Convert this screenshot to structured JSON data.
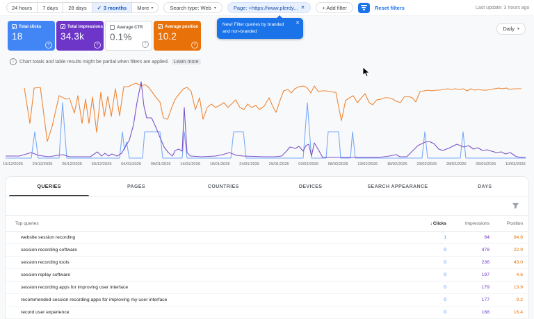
{
  "toolbar": {
    "date_ranges": [
      {
        "label": "24 hours"
      },
      {
        "label": "7 days"
      },
      {
        "label": "28 days"
      },
      {
        "label": "3 months",
        "check": "✓",
        "selected": true
      },
      {
        "label": "More",
        "caret": "▾"
      }
    ],
    "search_type": {
      "label": "Search type: Web",
      "caret": "▾"
    },
    "page_filter": {
      "label": "Page: +https://www.plerdy...",
      "close": "✕"
    },
    "add_filter_label": "+  Add filter",
    "reset_filters_label": "Reset filters",
    "last_update": "Last update: 3 hours ago"
  },
  "promo_tooltip": {
    "text": "New! Filter queries by branded and non-branded",
    "close": "✕"
  },
  "cards": [
    {
      "label": "Total clicks",
      "value": "18",
      "checked": true,
      "color": "#4285f4",
      "help": "?"
    },
    {
      "label": "Total impressions",
      "value": "34.3k",
      "checked": true,
      "color": "#6d35c8",
      "help": "?"
    },
    {
      "label": "Average CTR",
      "value": "0.1%",
      "checked": false,
      "color": "#ffffff",
      "help": "?"
    },
    {
      "label": "Average position",
      "value": "10.2",
      "checked": true,
      "color": "#e8710a",
      "help": "?"
    }
  ],
  "granularity": {
    "label": "Daily",
    "caret": "▾"
  },
  "notice": {
    "icon": "i",
    "text": "Chart totals and table results might be partial when filters are applied.",
    "link": "Learn more"
  },
  "chart_data": {
    "type": "line",
    "title": "Search performance over time (daily)",
    "legend_position": "none",
    "grid": false,
    "y_axis": "hidden (each series auto-scaled by Search Console)",
    "totals": {
      "total_clicks": "18",
      "total_impressions": "34.3k",
      "average_ctr": "0.1%",
      "average_position": "10.2"
    },
    "x_tick_labels": [
      "15/12/2025",
      "20/12/2025",
      "25/12/2025",
      "30/12/2025",
      "04/01/2026",
      "09/01/2026",
      "14/01/2026",
      "19/01/2026",
      "24/01/2026",
      "29/01/2026",
      "03/02/2026",
      "08/02/2026",
      "13/02/2026",
      "18/02/2026",
      "23/02/2026",
      "28/02/2026",
      "05/03/2026",
      "10/03/2026"
    ],
    "series": [
      {
        "name": "Total impressions",
        "color": "#ee8636",
        "points": [
          [
            35,
            19
          ],
          [
            43,
            70
          ],
          [
            49,
            19
          ],
          [
            58,
            18
          ],
          [
            68,
            96
          ],
          [
            75,
            74
          ],
          [
            85,
            30
          ],
          [
            95,
            35
          ],
          [
            100,
            34
          ],
          [
            107,
            55
          ],
          [
            112,
            30
          ],
          [
            118,
            70
          ],
          [
            123,
            35
          ],
          [
            128,
            70
          ],
          [
            133,
            32
          ],
          [
            139,
            83
          ],
          [
            145,
            25
          ],
          [
            150,
            60
          ],
          [
            155,
            31
          ],
          [
            160,
            60
          ],
          [
            166,
            20
          ],
          [
            172,
            59
          ],
          [
            178,
            17
          ],
          [
            185,
            17
          ],
          [
            190,
            14
          ],
          [
            196,
            12
          ],
          [
            203,
            16
          ],
          [
            208,
            14
          ],
          [
            213,
            17
          ],
          [
            219,
            25
          ],
          [
            224,
            32
          ],
          [
            230,
            39
          ],
          [
            235,
            62
          ],
          [
            241,
            64
          ],
          [
            247,
            47
          ],
          [
            252,
            35
          ],
          [
            258,
            27
          ],
          [
            264,
            20
          ],
          [
            269,
            18
          ],
          [
            275,
            24
          ],
          [
            281,
            50
          ],
          [
            287,
            33
          ],
          [
            292,
            64
          ],
          [
            298,
            47
          ],
          [
            304,
            42
          ],
          [
            310,
            47
          ],
          [
            316,
            44
          ],
          [
            322,
            40
          ],
          [
            328,
            47
          ],
          [
            333,
            42
          ],
          [
            339,
            36
          ],
          [
            345,
            47
          ],
          [
            351,
            50
          ],
          [
            356,
            42
          ],
          [
            362,
            47
          ],
          [
            368,
            44
          ],
          [
            373,
            50
          ],
          [
            380,
            45
          ],
          [
            387,
            33
          ],
          [
            392,
            45
          ],
          [
            397,
            54
          ],
          [
            403,
            36
          ],
          [
            408,
            23
          ],
          [
            414,
            21
          ],
          [
            419,
            26
          ],
          [
            424,
            20
          ],
          [
            430,
            17
          ],
          [
            436,
            16
          ],
          [
            441,
            18
          ],
          [
            447,
            26
          ],
          [
            452,
            16
          ],
          [
            458,
            24
          ],
          [
            463,
            23
          ],
          [
            469,
            23
          ],
          [
            474,
            24
          ],
          [
            480,
            25
          ],
          [
            483,
            25
          ],
          [
            491,
            66
          ],
          [
            497,
            37
          ],
          [
            503,
            33
          ],
          [
            508,
            30
          ],
          [
            514,
            40
          ],
          [
            519,
            34
          ],
          [
            525,
            27
          ],
          [
            531,
            40
          ],
          [
            536,
            43
          ],
          [
            542,
            36
          ],
          [
            548,
            35
          ],
          [
            553,
            33
          ],
          [
            559,
            33
          ],
          [
            565,
            35
          ],
          [
            570,
            38
          ],
          [
            576,
            40
          ],
          [
            581,
            32
          ],
          [
            587,
            31
          ],
          [
            593,
            33
          ],
          [
            598,
            39
          ],
          [
            604,
            24
          ],
          [
            610,
            23
          ],
          [
            615,
            22
          ],
          [
            621,
            23
          ],
          [
            627,
            22
          ],
          [
            632,
            22
          ],
          [
            638,
            21
          ],
          [
            644,
            20
          ],
          [
            649,
            21
          ],
          [
            655,
            20
          ],
          [
            660,
            21
          ],
          [
            666,
            20
          ],
          [
            672,
            23
          ],
          [
            677,
            20
          ],
          [
            683,
            22
          ],
          [
            688,
            21
          ],
          [
            694,
            22
          ],
          [
            700,
            22
          ],
          [
            705,
            21
          ],
          [
            711,
            20
          ],
          [
            717,
            19
          ],
          [
            722,
            20
          ],
          [
            728,
            19
          ],
          [
            733,
            21
          ],
          [
            739,
            20
          ],
          [
            745,
            20
          ],
          [
            750,
            20
          ]
        ]
      },
      {
        "name": "Total clicks",
        "color": "#78a9f9",
        "points": [
          [
            8,
            120
          ],
          [
            45,
            120
          ],
          [
            50,
            82
          ],
          [
            55,
            120
          ],
          [
            85,
            120
          ],
          [
            90,
            40
          ],
          [
            96,
            120
          ],
          [
            172,
            120
          ],
          [
            176,
            82
          ],
          [
            179,
            108
          ],
          [
            182,
            97
          ],
          [
            186,
            120
          ],
          [
            205,
            120
          ],
          [
            208,
            82
          ],
          [
            230,
            82
          ],
          [
            234,
            120
          ],
          [
            262,
            120
          ],
          [
            265,
            82
          ],
          [
            269,
            120
          ],
          [
            332,
            120
          ],
          [
            336,
            82
          ],
          [
            350,
            82
          ],
          [
            354,
            120
          ],
          [
            436,
            120
          ],
          [
            442,
            40
          ],
          [
            448,
            120
          ],
          [
            469,
            120
          ],
          [
            472,
            82
          ],
          [
            487,
            82
          ],
          [
            490,
            120
          ],
          [
            504,
            120
          ],
          [
            507,
            82
          ],
          [
            511,
            120
          ],
          [
            607,
            120
          ],
          [
            611,
            82
          ],
          [
            615,
            120
          ],
          [
            662,
            120
          ],
          [
            666,
            82
          ],
          [
            670,
            120
          ],
          [
            756,
            120
          ]
        ]
      },
      {
        "name": "Average position",
        "color": "#7a52c9",
        "points": [
          [
            8,
            117
          ],
          [
            28,
            117
          ],
          [
            45,
            112
          ],
          [
            55,
            116
          ],
          [
            70,
            118
          ],
          [
            90,
            115
          ],
          [
            100,
            118
          ],
          [
            130,
            118
          ],
          [
            140,
            111
          ],
          [
            146,
            117
          ],
          [
            151,
            113
          ],
          [
            156,
            117
          ],
          [
            161,
            114
          ],
          [
            168,
            117
          ],
          [
            175,
            113
          ],
          [
            180,
            104
          ],
          [
            186,
            94
          ],
          [
            192,
            72
          ],
          [
            197,
            40
          ],
          [
            203,
            10
          ],
          [
            207,
            45
          ],
          [
            211,
            62
          ],
          [
            218,
            62
          ],
          [
            224,
            75
          ],
          [
            230,
            90
          ],
          [
            236,
            104
          ],
          [
            242,
            112
          ],
          [
            248,
            117
          ],
          [
            252,
            109
          ],
          [
            257,
            107
          ],
          [
            262,
            110
          ],
          [
            265,
            47
          ],
          [
            269,
            112
          ],
          [
            274,
            117
          ],
          [
            290,
            118
          ],
          [
            310,
            117
          ],
          [
            320,
            115
          ],
          [
            330,
            112
          ],
          [
            340,
            116
          ],
          [
            350,
            117
          ],
          [
            380,
            118
          ],
          [
            395,
            118
          ],
          [
            405,
            117
          ],
          [
            412,
            110
          ],
          [
            417,
            104
          ],
          [
            425,
            106
          ],
          [
            430,
            103
          ],
          [
            436,
            110
          ],
          [
            440,
            102
          ],
          [
            444,
            100
          ],
          [
            448,
            117
          ],
          [
            452,
            98
          ],
          [
            458,
            108
          ],
          [
            464,
            119
          ],
          [
            480,
            119
          ],
          [
            500,
            119
          ],
          [
            520,
            119
          ],
          [
            545,
            119
          ],
          [
            560,
            117
          ],
          [
            570,
            115
          ],
          [
            575,
            118
          ],
          [
            585,
            118
          ],
          [
            591,
            112
          ],
          [
            601,
            102
          ],
          [
            611,
            97
          ],
          [
            617,
            96
          ],
          [
            624,
            99
          ],
          [
            631,
            107
          ],
          [
            637,
            109
          ],
          [
            647,
            105
          ],
          [
            657,
            100
          ],
          [
            667,
            104
          ],
          [
            674,
            102
          ],
          [
            681,
            107
          ],
          [
            687,
            105
          ],
          [
            694,
            109
          ],
          [
            701,
            108
          ],
          [
            707,
            110
          ],
          [
            714,
            112
          ],
          [
            721,
            111
          ],
          [
            727,
            114
          ],
          [
            734,
            112
          ],
          [
            741,
            117
          ],
          [
            747,
            119
          ],
          [
            756,
            119
          ]
        ]
      }
    ]
  },
  "table": {
    "tabs": [
      {
        "label": "QUERIES",
        "active": true
      },
      {
        "label": "PAGES"
      },
      {
        "label": "COUNTRIES"
      },
      {
        "label": "DEVICES"
      },
      {
        "label": "SEARCH APPEARANCE"
      },
      {
        "label": "DAYS"
      }
    ],
    "columns": {
      "dimension": "Top queries",
      "sort_icon": "↓",
      "clicks": "Clicks",
      "impressions": "Impressions",
      "position": "Position"
    },
    "rows": [
      {
        "query": "website session recording",
        "clicks": "1",
        "impressions": "64",
        "position": "64.8"
      },
      {
        "query": "session recording software",
        "clicks": "0",
        "impressions": "478",
        "position": "22.9"
      },
      {
        "query": "session recording tools",
        "clicks": "0",
        "impressions": "236",
        "position": "43.0"
      },
      {
        "query": "session replay software",
        "clicks": "0",
        "impressions": "197",
        "position": "4.6"
      },
      {
        "query": "session recording apps for improving user interface",
        "clicks": "0",
        "impressions": "179",
        "position": "13.9"
      },
      {
        "query": "recommended session recording apps for improving my user interface",
        "clicks": "0",
        "impressions": "177",
        "position": "9.2"
      },
      {
        "query": "record user experience",
        "clicks": "0",
        "impressions": "168",
        "position": "16.4"
      }
    ]
  }
}
